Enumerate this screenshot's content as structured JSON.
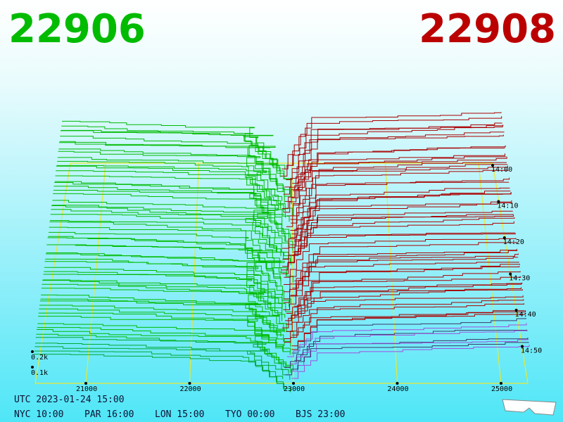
{
  "header": {
    "bid": "22906",
    "ask": "22908"
  },
  "price_axis": {
    "ticks": [
      21000,
      22000,
      23000,
      24000,
      25000
    ]
  },
  "depth_axis": {
    "ticks": [
      {
        "value": 100,
        "label": "0.1k"
      },
      {
        "value": 200,
        "label": "0.2k"
      }
    ]
  },
  "time_axis": {
    "ticks": [
      "14:00",
      "14:10",
      "14:20",
      "14:30",
      "14:40",
      "14:50"
    ]
  },
  "footer": {
    "utc": "UTC 2023-01-24 15:00",
    "clocks": [
      "NYC 10:00",
      "PAR 16:00",
      "LON 15:00",
      "TYO 00:00",
      "BJS 23:00"
    ]
  }
}
